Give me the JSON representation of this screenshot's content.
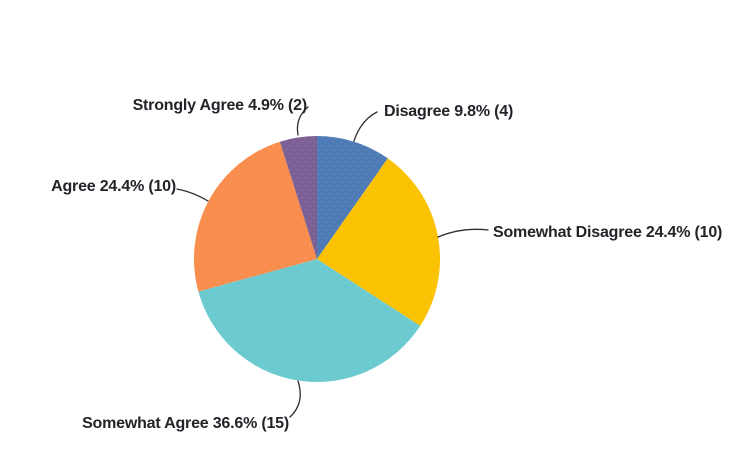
{
  "chart_data": {
    "type": "pie",
    "title": "",
    "legend_position": "none",
    "label_style": "outside with leader lines",
    "start": "top",
    "direction": "clockwise",
    "value_format": "Label pct% (count)",
    "categories": [
      "Disagree",
      "Somewhat Disagree",
      "Somewhat Agree",
      "Agree",
      "Strongly Agree"
    ],
    "values_pct": [
      9.8,
      24.4,
      36.6,
      24.4,
      4.9
    ],
    "counts": [
      4,
      10,
      15,
      10,
      2
    ],
    "slices": [
      {
        "label": "Disagree",
        "pct": 9.8,
        "count": 4,
        "display": "Disagree 9.8% (4)",
        "color": "#4E7BB5"
      },
      {
        "label": "Somewhat Disagree",
        "pct": 24.4,
        "count": 10,
        "display": "Somewhat Disagree 24.4% (10)",
        "color": "#FBC202"
      },
      {
        "label": "Somewhat Agree",
        "pct": 36.6,
        "count": 15,
        "display": "Somewhat Agree 36.6% (15)",
        "color": "#6BCACF"
      },
      {
        "label": "Agree",
        "pct": 24.4,
        "count": 10,
        "display": "Agree 24.4% (10)",
        "color": "#F98D4D"
      },
      {
        "label": "Strongly Agree",
        "pct": 4.9,
        "count": 2,
        "display": "Strongly Agree 4.9% (2)",
        "color": "#7C5F94"
      }
    ],
    "style": {
      "background": "#ffffff",
      "label_color": "#232329",
      "leader_line_color": "#2e2e33"
    }
  }
}
